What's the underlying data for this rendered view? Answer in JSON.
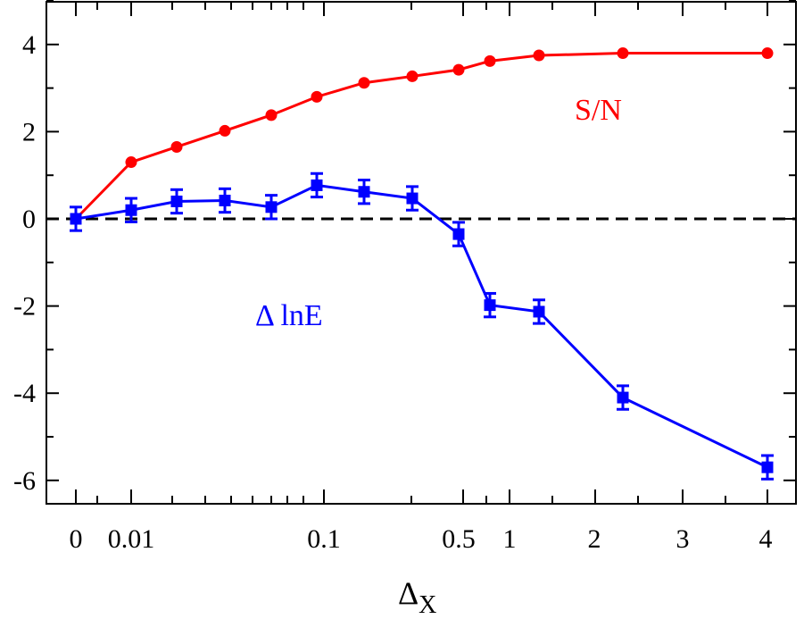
{
  "chart_data": {
    "type": "line",
    "title": "",
    "xlabel": "Δ",
    "xlabel_sub": "X",
    "ylabel": "",
    "ylim": [
      -6.5,
      5
    ],
    "x_tick_labels": [
      "0",
      "0.01",
      "0.1",
      "0.5",
      "1",
      "2",
      "3",
      "4"
    ],
    "y_ticks": [
      4,
      2,
      0,
      -2,
      -4,
      -6
    ],
    "y_tick_labels": [
      "4",
      "2",
      "0",
      "-2",
      "-4",
      "-6"
    ],
    "reference_line": {
      "y": 0,
      "style": "dashed",
      "color": "#000000"
    },
    "categories": [
      "0",
      "0.01",
      "0.02",
      "0.03",
      "0.05",
      "0.1",
      "0.15",
      "0.2",
      "0.4",
      "0.5",
      "1",
      "2",
      "4"
    ],
    "series": [
      {
        "name": "S/N",
        "label": "S/N",
        "color": "#ff0000",
        "marker": "circle",
        "values": [
          0.0,
          1.3,
          1.65,
          2.02,
          2.38,
          2.8,
          3.12,
          3.27,
          3.42,
          3.62,
          3.75,
          3.8,
          3.8
        ]
      },
      {
        "name": "Δ lnE",
        "label": "Δ lnE",
        "color": "#0000ff",
        "marker": "square",
        "values": [
          0.0,
          0.2,
          0.4,
          0.42,
          0.27,
          0.77,
          0.62,
          0.47,
          -0.35,
          -1.98,
          -2.13,
          -4.1,
          -5.7
        ],
        "errors": [
          0.27,
          0.27,
          0.27,
          0.27,
          0.27,
          0.27,
          0.27,
          0.27,
          0.27,
          0.27,
          0.27,
          0.27,
          0.27
        ]
      }
    ]
  }
}
